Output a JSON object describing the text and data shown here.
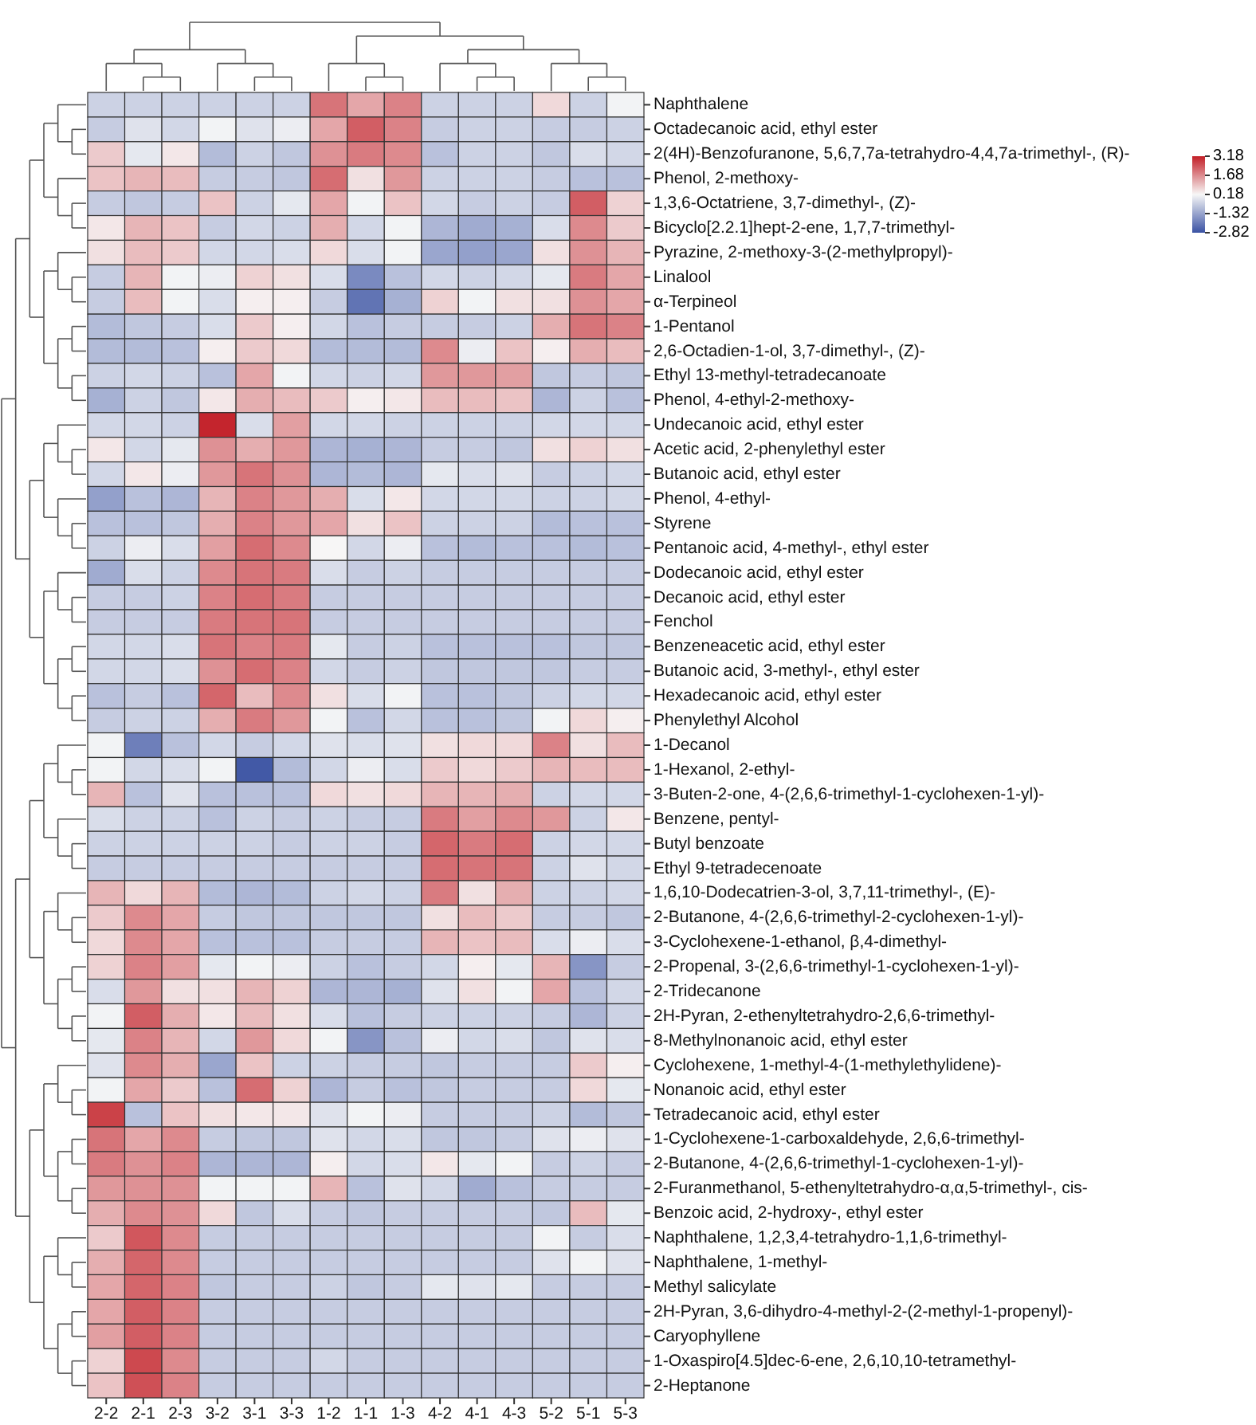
{
  "chart_data": {
    "type": "heatmap",
    "categories": [
      "2-2",
      "2-1",
      "2-3",
      "3-2",
      "3-1",
      "3-3",
      "1-2",
      "1-1",
      "1-3",
      "4-2",
      "4-1",
      "4-3",
      "5-2",
      "5-1",
      "5-3"
    ],
    "y_categories": [
      "Naphthalene",
      "Octadecanoic acid, ethyl ester",
      "2(4H)-Benzofuranone, 5,6,7,7a-tetrahydro-4,4,7a-trimethyl-, (R)-",
      "Phenol, 2-methoxy-",
      "1,3,6-Octatriene, 3,7-dimethyl-, (Z)-",
      "Bicyclo[2.2.1]hept-2-ene, 1,7,7-trimethyl-",
      "Pyrazine, 2-methoxy-3-(2-methylpropyl)-",
      "Linalool",
      "α-Terpineol",
      "1-Pentanol",
      "2,6-Octadien-1-ol, 3,7-dimethyl-, (Z)-",
      "Ethyl 13-methyl-tetradecanoate",
      "Phenol, 4-ethyl-2-methoxy-",
      "Undecanoic acid, ethyl ester",
      "Acetic acid, 2-phenylethyl ester",
      "Butanoic acid, ethyl ester",
      "Phenol, 4-ethyl-",
      "Styrene",
      "Pentanoic acid, 4-methyl-, ethyl ester",
      "Dodecanoic acid, ethyl ester",
      "Decanoic acid, ethyl ester",
      "Fenchol",
      "Benzeneacetic acid, ethyl ester",
      "Butanoic acid, 3-methyl-, ethyl ester",
      "Hexadecanoic acid, ethyl ester",
      "Phenylethyl Alcohol",
      "1-Decanol",
      "1-Hexanol, 2-ethyl-",
      "3-Buten-2-one, 4-(2,6,6-trimethyl-1-cyclohexen-1-yl)-",
      "Benzene, pentyl-",
      "Butyl benzoate",
      "Ethyl 9-tetradecenoate",
      "1,6,10-Dodecatrien-3-ol, 3,7,11-trimethyl-, (E)-",
      "2-Butanone, 4-(2,6,6-trimethyl-2-cyclohexen-1-yl)-",
      "3-Cyclohexene-1-ethanol, β,4-dimethyl-",
      "2-Propenal, 3-(2,6,6-trimethyl-1-cyclohexen-1-yl)-",
      "2-Tridecanone",
      "2H-Pyran, 2-ethenyltetrahydro-2,6,6-trimethyl-",
      "8-Methylnonanoic acid, ethyl ester",
      "Cyclohexene, 1-methyl-4-(1-methylethylidene)-",
      "Nonanoic acid, ethyl ester",
      "Tetradecanoic acid, ethyl ester",
      "1-Cyclohexene-1-carboxaldehyde, 2,6,6-trimethyl-",
      "2-Butanone, 4-(2,6,6-trimethyl-1-cyclohexen-1-yl)-",
      "2-Furanmethanol, 5-ethenyltetrahydro-α,α,5-trimethyl-, cis-",
      "Benzoic acid, 2-hydroxy-, ethyl ester",
      "Naphthalene, 1,2,3,4-tetrahydro-1,1,6-trimethyl-",
      "Naphthalene, 1-methyl-",
      "Methyl salicylate",
      "2H-Pyran, 3,6-dihydro-4-methyl-2-(2-methyl-1-propenyl)-",
      "Caryophyllene",
      "1-Oxaspiro[4.5]dec-6-ene, 2,6,10,10-tetramethyl-",
      "2-Heptanone"
    ],
    "cells": [
      [
        -0.5,
        -0.5,
        -0.5,
        -0.5,
        -0.5,
        -0.5,
        2.0,
        1.3,
        1.8,
        -0.5,
        -0.5,
        -0.5,
        0.6,
        -0.5,
        0.1
      ],
      [
        -0.6,
        -0.2,
        -0.4,
        0.1,
        -0.2,
        0.0,
        1.3,
        2.3,
        1.8,
        -0.6,
        -0.5,
        -0.5,
        -0.6,
        -0.6,
        -0.5
      ],
      [
        0.8,
        -0.1,
        0.4,
        -0.9,
        -0.5,
        -0.7,
        1.6,
        1.9,
        1.7,
        -0.8,
        -0.5,
        -0.5,
        -0.7,
        -0.3,
        -0.4
      ],
      [
        0.9,
        1.1,
        1.0,
        -0.6,
        -0.6,
        -0.7,
        2.1,
        0.5,
        1.5,
        -0.5,
        -0.5,
        -0.5,
        -0.6,
        -0.8,
        -0.8
      ],
      [
        -0.6,
        -0.7,
        -0.6,
        0.9,
        -0.5,
        -0.1,
        1.3,
        0.1,
        0.9,
        -0.4,
        -0.6,
        -0.5,
        -0.6,
        2.3,
        0.7
      ],
      [
        0.4,
        1.1,
        0.9,
        -0.6,
        -0.4,
        -0.5,
        1.2,
        -0.4,
        0.1,
        -1.0,
        -1.2,
        -1.1,
        -0.3,
        1.7,
        0.8
      ],
      [
        0.5,
        1.0,
        0.8,
        -0.4,
        -0.4,
        -0.3,
        0.6,
        -0.3,
        0.1,
        -1.3,
        -1.4,
        -1.3,
        0.5,
        1.6,
        1.1
      ],
      [
        -0.6,
        1.1,
        0.1,
        0.0,
        0.7,
        0.5,
        -0.3,
        -1.8,
        -0.8,
        -0.4,
        -0.5,
        -0.4,
        -0.1,
        1.9,
        1.3
      ],
      [
        -0.6,
        1.0,
        0.1,
        -0.3,
        0.3,
        0.3,
        -0.6,
        -2.2,
        -1.1,
        0.7,
        0.1,
        0.5,
        0.5,
        1.6,
        1.3
      ],
      [
        -0.9,
        -0.7,
        -0.6,
        -0.3,
        0.8,
        0.3,
        -0.4,
        -0.8,
        -0.6,
        -0.6,
        -0.6,
        -0.5,
        1.2,
        2.0,
        1.8
      ],
      [
        -0.9,
        -0.9,
        -0.8,
        0.3,
        0.8,
        0.6,
        -0.9,
        -0.9,
        -0.9,
        1.7,
        0.0,
        0.9,
        0.3,
        1.2,
        1.0
      ],
      [
        -0.5,
        -0.4,
        -0.5,
        -0.8,
        1.3,
        0.1,
        -0.4,
        -0.5,
        -0.4,
        1.5,
        1.5,
        1.4,
        -0.7,
        -0.6,
        -0.7
      ],
      [
        -1.1,
        -0.5,
        -0.7,
        0.4,
        1.2,
        1.0,
        0.8,
        0.3,
        0.4,
        1.0,
        1.0,
        0.9,
        -1.0,
        -0.5,
        -0.8
      ],
      [
        -0.4,
        -0.4,
        -0.5,
        3.1,
        -0.3,
        1.4,
        -0.4,
        -0.4,
        -0.5,
        -0.5,
        -0.5,
        -0.5,
        -0.4,
        -0.4,
        -0.4
      ],
      [
        0.4,
        -0.4,
        -0.1,
        1.6,
        1.2,
        1.5,
        -1.0,
        -1.1,
        -1.0,
        -0.6,
        -0.6,
        -0.7,
        0.5,
        0.7,
        0.5
      ],
      [
        -0.4,
        0.4,
        0.0,
        1.5,
        2.0,
        1.6,
        -1.0,
        -0.9,
        -1.0,
        -0.1,
        -0.3,
        -0.2,
        -0.6,
        -0.5,
        -0.4
      ],
      [
        -1.4,
        -0.8,
        -1.0,
        1.1,
        1.8,
        1.5,
        1.2,
        -0.3,
        0.4,
        -0.4,
        -0.4,
        -0.4,
        -0.5,
        -0.5,
        -0.4
      ],
      [
        -0.8,
        -0.8,
        -0.7,
        1.2,
        1.8,
        1.5,
        1.3,
        0.5,
        0.9,
        -0.5,
        -0.5,
        -0.5,
        -0.9,
        -0.8,
        -0.8
      ],
      [
        -0.5,
        0.0,
        -0.3,
        1.4,
        2.1,
        1.7,
        0.2,
        -0.4,
        0.0,
        -0.8,
        -0.9,
        -0.8,
        -0.8,
        -0.9,
        -0.8
      ],
      [
        -1.2,
        -0.3,
        -0.5,
        1.7,
        2.0,
        1.9,
        -0.3,
        -0.6,
        -0.5,
        -0.6,
        -0.6,
        -0.6,
        -0.6,
        -0.6,
        -0.6
      ],
      [
        -0.6,
        -0.6,
        -0.5,
        1.8,
        2.1,
        1.9,
        -0.6,
        -0.6,
        -0.6,
        -0.6,
        -0.6,
        -0.6,
        -0.6,
        -0.6,
        -0.6
      ],
      [
        -0.6,
        -0.6,
        -0.6,
        1.9,
        2.0,
        2.0,
        -0.6,
        -0.6,
        -0.6,
        -0.6,
        -0.6,
        -0.6,
        -0.6,
        -0.6,
        -0.6
      ],
      [
        -0.4,
        -0.4,
        -0.3,
        2.0,
        1.8,
        1.9,
        -0.1,
        -0.6,
        -0.5,
        -0.8,
        -0.8,
        -0.8,
        -0.8,
        -0.7,
        -0.7
      ],
      [
        -0.4,
        -0.4,
        -0.3,
        1.6,
        2.1,
        1.8,
        -0.4,
        -0.6,
        -0.5,
        -0.7,
        -0.7,
        -0.7,
        -0.7,
        -0.6,
        -0.6
      ],
      [
        -0.8,
        -0.6,
        -0.8,
        2.2,
        1.0,
        1.7,
        0.5,
        -0.3,
        0.1,
        -0.8,
        -0.8,
        -0.7,
        -0.5,
        -0.4,
        -0.4
      ],
      [
        -0.6,
        -0.5,
        -0.5,
        1.2,
        1.9,
        1.5,
        0.1,
        -0.8,
        -0.4,
        -0.8,
        -0.8,
        -0.7,
        0.1,
        0.6,
        0.3
      ],
      [
        0.1,
        -2.0,
        -0.8,
        -0.4,
        -0.6,
        -0.4,
        -0.2,
        -0.3,
        -0.2,
        0.5,
        0.6,
        0.6,
        1.8,
        0.5,
        1.0
      ],
      [
        0.1,
        -0.4,
        -0.3,
        0.1,
        -2.7,
        -0.9,
        -0.4,
        0.0,
        -0.3,
        0.8,
        0.6,
        0.8,
        1.1,
        1.0,
        1.0
      ],
      [
        1.1,
        -0.8,
        -0.2,
        -0.8,
        -0.8,
        -0.8,
        0.6,
        0.5,
        0.6,
        1.1,
        1.1,
        1.2,
        -0.5,
        -0.4,
        -0.4
      ],
      [
        -0.3,
        -0.5,
        -0.5,
        -0.8,
        -0.5,
        -0.6,
        -0.5,
        -0.6,
        -0.6,
        1.9,
        1.4,
        1.7,
        1.5,
        -0.5,
        0.4
      ],
      [
        -0.5,
        -0.5,
        -0.5,
        -0.5,
        -0.5,
        -0.6,
        -0.5,
        -0.5,
        -0.6,
        2.2,
        1.9,
        2.1,
        -0.5,
        -0.4,
        -0.4
      ],
      [
        -0.6,
        -0.6,
        -0.6,
        -0.6,
        -0.6,
        -0.6,
        -0.6,
        -0.6,
        -0.6,
        2.1,
        2.0,
        2.0,
        -0.5,
        -0.2,
        -0.4
      ],
      [
        1.1,
        0.6,
        1.1,
        -0.9,
        -1.0,
        -0.9,
        -0.5,
        -0.4,
        -0.5,
        1.9,
        0.5,
        1.2,
        -0.5,
        -0.5,
        -0.4
      ],
      [
        0.8,
        1.7,
        1.3,
        -0.6,
        -0.7,
        -0.7,
        -0.7,
        -0.7,
        -0.7,
        0.5,
        1.0,
        0.8,
        -0.6,
        -0.6,
        -0.7
      ],
      [
        0.6,
        1.7,
        1.3,
        -0.8,
        -0.8,
        -0.8,
        -0.6,
        -0.6,
        -0.6,
        1.1,
        0.9,
        1.0,
        -0.3,
        0.0,
        -0.3
      ],
      [
        0.7,
        1.8,
        1.4,
        -0.1,
        0.1,
        0.0,
        -0.5,
        -0.8,
        -0.6,
        -0.4,
        0.3,
        -0.1,
        1.1,
        -1.6,
        -0.6
      ],
      [
        -0.3,
        1.5,
        0.5,
        0.5,
        1.1,
        0.7,
        -1.0,
        -1.0,
        -1.1,
        -0.2,
        0.5,
        0.1,
        1.3,
        -0.8,
        -0.4
      ],
      [
        0.1,
        2.3,
        1.2,
        0.4,
        1.0,
        0.5,
        -0.3,
        -0.8,
        -0.6,
        -0.5,
        -0.5,
        -0.5,
        -0.6,
        -1.0,
        -0.5
      ],
      [
        -0.1,
        1.8,
        1.1,
        -0.4,
        1.5,
        0.6,
        0.1,
        -1.6,
        -0.8,
        0.0,
        -0.4,
        -0.3,
        -0.7,
        -0.2,
        -0.3
      ],
      [
        -0.2,
        1.7,
        1.2,
        -1.3,
        0.9,
        -0.5,
        -0.5,
        -0.6,
        -0.6,
        -0.7,
        -0.6,
        -0.6,
        -0.6,
        0.8,
        0.3
      ],
      [
        0.1,
        1.3,
        0.8,
        -0.8,
        2.1,
        0.7,
        -1.0,
        -0.6,
        -0.8,
        -0.7,
        -0.6,
        -0.6,
        -0.6,
        0.6,
        -0.1
      ],
      [
        2.7,
        -0.8,
        0.9,
        0.5,
        0.4,
        0.4,
        -0.2,
        0.1,
        0.0,
        -0.6,
        -0.6,
        -0.6,
        -0.5,
        -0.9,
        -0.7
      ],
      [
        2.0,
        1.3,
        1.7,
        -0.6,
        -0.7,
        -0.7,
        -0.2,
        -0.4,
        -0.3,
        -0.7,
        -0.7,
        -0.6,
        -0.2,
        0.0,
        -0.2
      ],
      [
        1.9,
        1.6,
        1.8,
        -1.0,
        -1.0,
        -1.0,
        0.3,
        -0.4,
        -0.3,
        0.4,
        -0.1,
        0.1,
        -0.6,
        -0.5,
        -0.6
      ],
      [
        1.5,
        1.6,
        1.6,
        0.1,
        0.1,
        0.1,
        1.1,
        -0.8,
        -0.2,
        -0.4,
        -1.2,
        -0.8,
        -0.6,
        -0.6,
        -0.6
      ],
      [
        1.2,
        1.7,
        1.6,
        0.6,
        -0.7,
        -0.3,
        -0.6,
        -0.7,
        -0.6,
        -0.6,
        -0.6,
        -0.6,
        -0.7,
        1.0,
        -0.1
      ],
      [
        0.8,
        2.4,
        1.7,
        -0.6,
        -0.6,
        -0.6,
        -0.6,
        -0.6,
        -0.6,
        -0.6,
        -0.6,
        -0.6,
        0.1,
        -0.6,
        -0.3
      ],
      [
        1.2,
        2.2,
        1.7,
        -0.6,
        -0.6,
        -0.6,
        -0.6,
        -0.6,
        -0.6,
        -0.6,
        -0.6,
        -0.6,
        -0.2,
        0.1,
        -0.2
      ],
      [
        1.3,
        2.2,
        1.8,
        -0.7,
        -0.6,
        -0.6,
        -0.5,
        -0.7,
        -0.6,
        -0.1,
        -0.2,
        -0.1,
        -0.6,
        -0.6,
        -0.6
      ],
      [
        1.3,
        2.3,
        1.8,
        -0.6,
        -0.6,
        -0.6,
        -0.6,
        -0.6,
        -0.6,
        -0.6,
        -0.6,
        -0.6,
        -0.6,
        -0.6,
        -0.6
      ],
      [
        1.4,
        2.3,
        1.8,
        -0.6,
        -0.6,
        -0.6,
        -0.6,
        -0.6,
        -0.6,
        -0.6,
        -0.6,
        -0.6,
        -0.6,
        -0.6,
        -0.6
      ],
      [
        0.7,
        2.6,
        1.7,
        -0.6,
        -0.6,
        -0.6,
        -0.4,
        -0.6,
        -0.6,
        -0.6,
        -0.6,
        -0.6,
        -0.6,
        -0.6,
        -0.6
      ],
      [
        0.9,
        2.5,
        1.8,
        -0.6,
        -0.6,
        -0.6,
        -0.6,
        -0.6,
        -0.6,
        -0.6,
        -0.6,
        -0.6,
        -0.6,
        -0.6,
        -0.6
      ]
    ],
    "clim": [
      -2.82,
      3.18
    ],
    "cticks": [
      3.18,
      1.68,
      0.18,
      -1.32,
      -2.82
    ]
  }
}
